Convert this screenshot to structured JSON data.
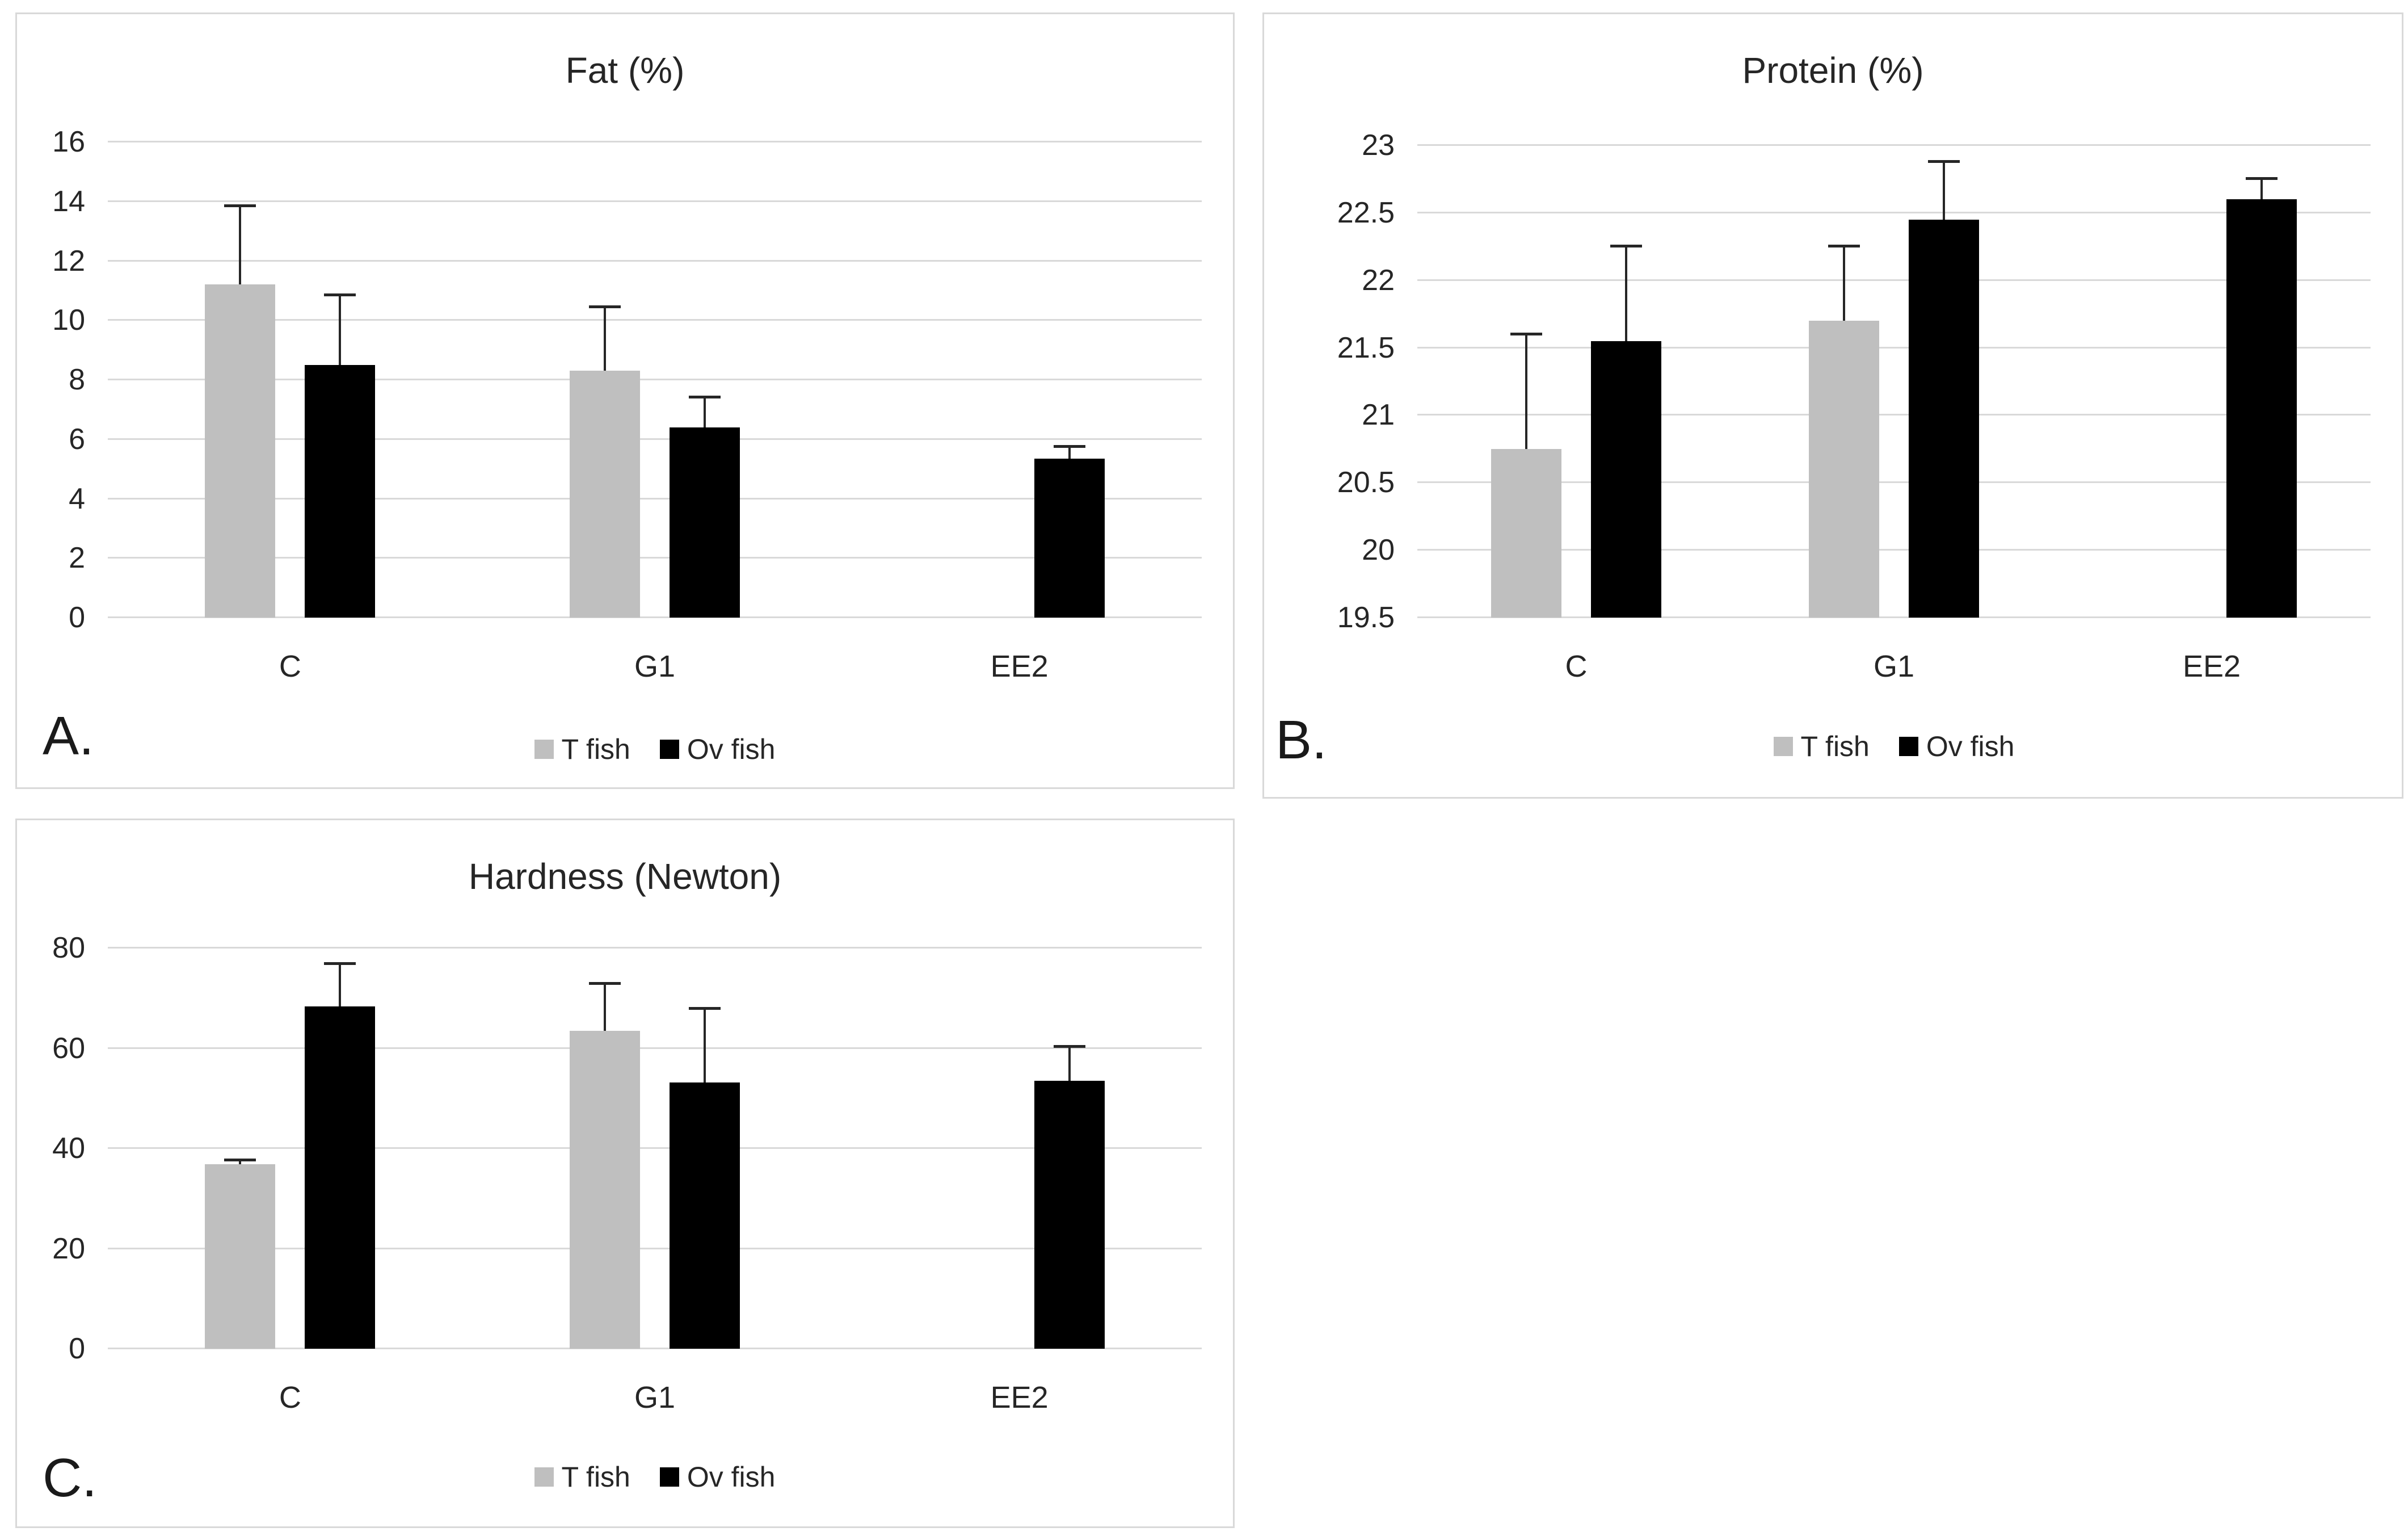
{
  "page": {
    "background": "#ffffff"
  },
  "colors": {
    "t_fish": "#bfbfbf",
    "ov_fish": "#000000",
    "gridline": "#d9d9d9",
    "panel_border": "#d9d9d9",
    "error_bar": "#262626",
    "text": "#262626"
  },
  "chart_data": [
    {
      "id": "A",
      "panel_label": "A.",
      "type": "bar",
      "title": "Fat (%)",
      "categories": [
        "C",
        "G1",
        "EE2"
      ],
      "series": [
        {
          "name": "T fish",
          "color": "#bfbfbf",
          "values": [
            11.2,
            8.3,
            null
          ],
          "errors_up": [
            2.65,
            2.15,
            null
          ]
        },
        {
          "name": "Ov fish",
          "color": "#000000",
          "values": [
            8.5,
            6.4,
            5.35
          ],
          "errors_up": [
            2.35,
            1.0,
            0.4
          ]
        }
      ],
      "ylim": [
        0,
        16
      ],
      "yticks": [
        0,
        2,
        4,
        6,
        8,
        10,
        12,
        14,
        16
      ],
      "grid": true,
      "legend_position": "bottom"
    },
    {
      "id": "B",
      "panel_label": "B.",
      "type": "bar",
      "title": "Protein (%)",
      "categories": [
        "C",
        "G1",
        "EE2"
      ],
      "series": [
        {
          "name": "T fish",
          "color": "#bfbfbf",
          "values": [
            20.75,
            21.7,
            null
          ],
          "errors_up": [
            0.85,
            0.55,
            null
          ]
        },
        {
          "name": "Ov fish",
          "color": "#000000",
          "values": [
            21.55,
            22.45,
            22.6
          ],
          "errors_up": [
            0.7,
            0.43,
            0.15
          ]
        }
      ],
      "ylim": [
        19.5,
        23
      ],
      "yticks": [
        19.5,
        20,
        20.5,
        21,
        21.5,
        22,
        22.5,
        23
      ],
      "grid": true,
      "legend_position": "bottom"
    },
    {
      "id": "C",
      "panel_label": "C.",
      "type": "bar",
      "title": "Hardness (Newton)",
      "categories": [
        "C",
        "G1",
        "EE2"
      ],
      "series": [
        {
          "name": "T fish",
          "color": "#bfbfbf",
          "values": [
            36.8,
            63.5,
            null
          ],
          "errors_up": [
            0.8,
            9.4,
            null
          ]
        },
        {
          "name": "Ov fish",
          "color": "#000000",
          "values": [
            68.3,
            53.2,
            53.5
          ],
          "errors_up": [
            8.5,
            14.7,
            6.8
          ]
        }
      ],
      "ylim": [
        0,
        80
      ],
      "yticks": [
        0,
        20,
        40,
        60,
        80
      ],
      "grid": true,
      "legend_position": "bottom"
    }
  ]
}
